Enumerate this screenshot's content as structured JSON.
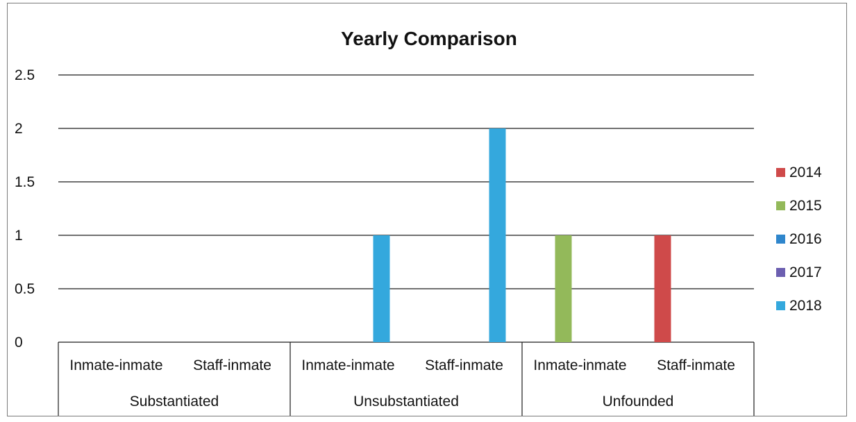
{
  "chart_data": {
    "type": "bar",
    "title": "Yearly Comparison",
    "xlabel": "",
    "ylabel": "",
    "ylim": [
      0,
      2.5
    ],
    "yticks": [
      "0",
      "0.5",
      "1",
      "1.5",
      "2",
      "2.5"
    ],
    "grid": true,
    "legend_position": "right",
    "groups": [
      {
        "label": "Substantiated",
        "categories": [
          "Inmate-inmate",
          "Staff-inmate"
        ]
      },
      {
        "label": "Unsubstantiated",
        "categories": [
          "Inmate-inmate",
          "Staff-inmate"
        ]
      },
      {
        "label": "Unfounded",
        "categories": [
          "Inmate-inmate",
          "Staff-inmate"
        ]
      }
    ],
    "categories": [
      "Inmate-inmate",
      "Staff-inmate",
      "Inmate-inmate",
      "Staff-inmate",
      "Inmate-inmate",
      "Staff-inmate"
    ],
    "series": [
      {
        "name": "2014",
        "color": "#cf4a4a",
        "values": [
          0,
          0,
          0,
          0,
          0,
          1
        ]
      },
      {
        "name": "2015",
        "color": "#93b95a",
        "values": [
          0,
          0,
          0,
          0,
          1,
          0
        ]
      },
      {
        "name": "2016",
        "color": "#2f86cc",
        "values": [
          0,
          0,
          0,
          0,
          0,
          0
        ]
      },
      {
        "name": "2017",
        "color": "#6c5fb0",
        "values": [
          0,
          0,
          0,
          0,
          0,
          0
        ]
      },
      {
        "name": "2018",
        "color": "#34a8dd",
        "values": [
          0,
          0,
          1,
          2,
          0,
          0
        ]
      }
    ]
  }
}
